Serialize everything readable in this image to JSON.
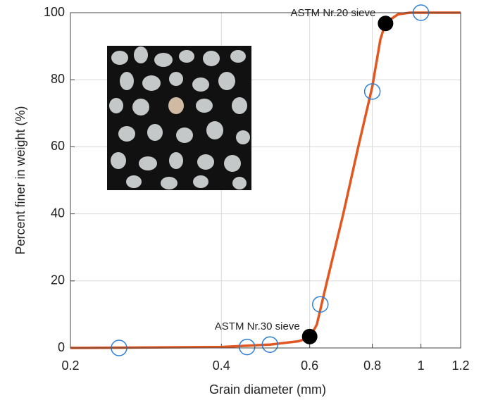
{
  "chart_data": {
    "type": "line",
    "xlabel": "Grain diameter (mm)",
    "ylabel": "Percent finer in weight (%)",
    "xscale": "log",
    "grid": true,
    "xlim": [
      0.2,
      1.2
    ],
    "xticks": [
      0.2,
      0.4,
      0.6,
      0.8,
      1,
      1.2
    ],
    "ylim": [
      0,
      100
    ],
    "yticks": [
      0,
      20,
      40,
      60,
      80,
      100
    ],
    "series": [
      {
        "kind": "line",
        "color": "#e2561f",
        "x": [
          0.2,
          0.4,
          0.5,
          0.57,
          0.6,
          0.62,
          0.65,
          0.7,
          0.75,
          0.8,
          0.83,
          0.85,
          0.9,
          0.95,
          1,
          1.2
        ],
        "values": [
          0,
          0.3,
          1,
          2,
          3,
          7,
          20,
          40,
          60,
          78,
          92,
          97,
          99.5,
          100,
          100,
          100
        ]
      },
      {
        "kind": "circle",
        "color": "#2f7fd6",
        "x": [
          0.25,
          0.45,
          0.5,
          0.63,
          0.8,
          1.0
        ],
        "values": [
          0,
          0.3,
          1,
          13,
          76.5,
          100
        ]
      },
      {
        "kind": "dot",
        "color": "#000000",
        "x": [
          0.6,
          0.85
        ],
        "values": [
          3.4,
          96.8
        ],
        "labels": [
          "ASTM Nr.30 sieve",
          "ASTM Nr.20 sieve"
        ]
      }
    ]
  }
}
